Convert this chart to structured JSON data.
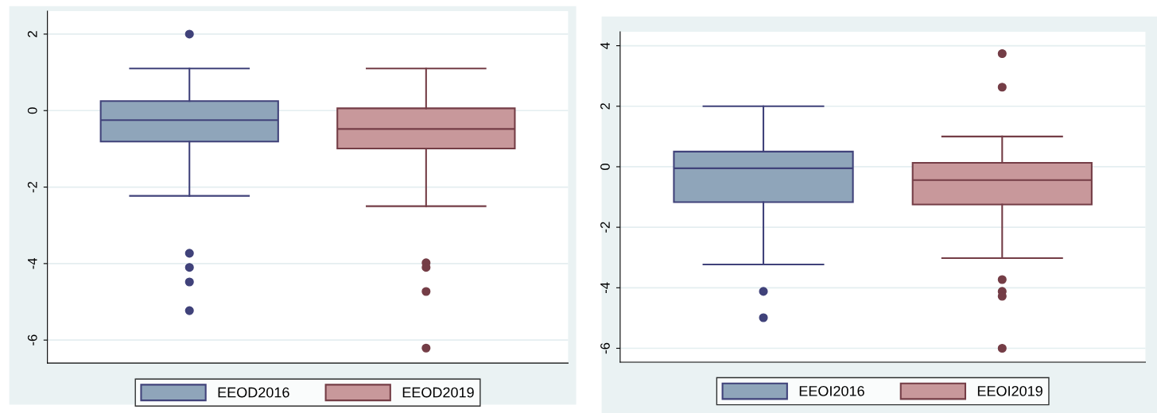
{
  "chart_data": [
    {
      "type": "box",
      "categories": [
        null
      ],
      "ylim": [
        -6.6,
        2.6
      ],
      "yticks": [
        -6,
        -4,
        -2,
        0,
        2
      ],
      "grid": "y",
      "legend": "bottom",
      "series": [
        {
          "name": "EEOD2016",
          "color": "#8fa5ba",
          "boxes": [
            {
              "low": -2.23,
              "q1": -0.81,
              "median": -0.25,
              "q3": 0.25,
              "high": 1.1,
              "outliers": [
                2.0,
                -3.73,
                -4.1,
                -4.48,
                -5.23
              ]
            }
          ]
        },
        {
          "name": "EEOD2019",
          "color": "#c8989b",
          "boxes": [
            {
              "low": -2.5,
              "q1": -0.99,
              "median": -0.48,
              "q3": 0.06,
              "high": 1.1,
              "outliers": [
                -3.98,
                -4.1,
                -4.73,
                -6.21
              ]
            }
          ]
        }
      ]
    },
    {
      "type": "box",
      "categories": [
        null
      ],
      "ylim": [
        -6.46,
        4.46
      ],
      "yticks": [
        -6,
        -4,
        -2,
        0,
        2,
        4
      ],
      "grid": "y",
      "legend": "bottom",
      "series": [
        {
          "name": "EEOI2016",
          "color": "#8fa5ba",
          "boxes": [
            {
              "low": -3.23,
              "q1": -1.17,
              "median": -0.05,
              "q3": 0.5,
              "high": 2.0,
              "outliers": [
                -4.12,
                -4.99
              ]
            }
          ]
        },
        {
          "name": "EEOI2019",
          "color": "#c8989b",
          "boxes": [
            {
              "low": -3.02,
              "q1": -1.25,
              "median": -0.44,
              "q3": 0.13,
              "high": 1.0,
              "outliers": [
                3.74,
                2.63,
                -3.73,
                -4.12,
                -4.28,
                -6.0
              ]
            }
          ]
        }
      ]
    }
  ]
}
